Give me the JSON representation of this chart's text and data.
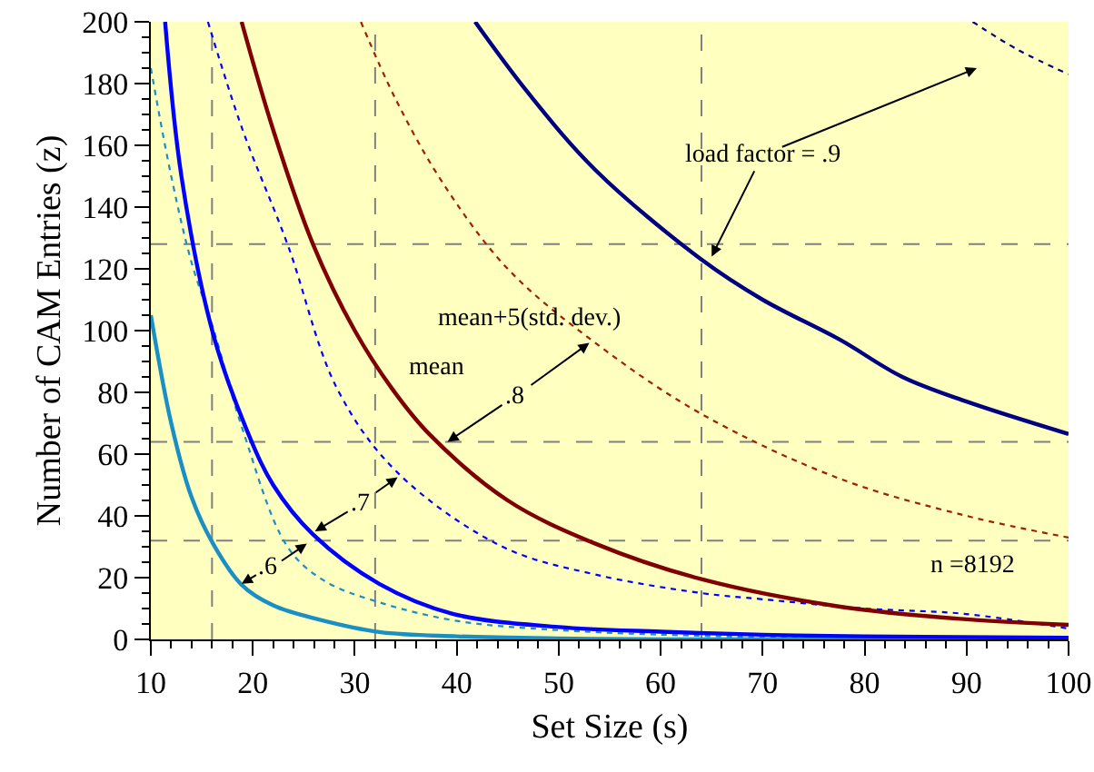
{
  "chart_data": {
    "type": "line",
    "xlabel": "Set Size (s)",
    "ylabel": "Number of CAM Entries (z)",
    "xlim": [
      10,
      100
    ],
    "ylim": [
      0,
      200
    ],
    "xticks": [
      10,
      20,
      30,
      40,
      50,
      60,
      70,
      80,
      90,
      100
    ],
    "yticks": [
      0,
      20,
      40,
      60,
      80,
      100,
      120,
      140,
      160,
      180,
      200
    ],
    "grid": false,
    "marker": "none",
    "series": [
      {
        "color": "#1a8fc4",
        "line_style": "solid",
        "x": [
          10,
          12,
          14,
          16.1,
          18.9,
          22,
          26.4,
          32.4,
          40,
          50,
          60,
          100
        ],
        "values": [
          105,
          70,
          46,
          31,
          17.7,
          11,
          6.5,
          2.4,
          1,
          0.3,
          0,
          0
        ]
      },
      {
        "color": "#1a8fc4",
        "line_style": "dotted",
        "x": [
          10,
          12,
          14,
          16.1,
          19,
          23.4,
          27,
          32.4,
          40,
          50,
          70,
          100
        ],
        "values": [
          185,
          150,
          122,
          101,
          68,
          30,
          19,
          12,
          6,
          3,
          0.7,
          0
        ]
      },
      {
        "color": "#0000ff",
        "line_style": "solid",
        "x": [
          11.4,
          13,
          16.1,
          19.2,
          22,
          25.9,
          32.4,
          39.6,
          50,
          60,
          70,
          80,
          100
        ],
        "values": [
          200,
          150,
          99,
          69.5,
          50,
          34,
          18,
          8.3,
          4,
          2.5,
          1.5,
          1,
          0.5
        ]
      },
      {
        "color": "#0000ff",
        "line_style": "dotted",
        "x": [
          15.6,
          19,
          23.4,
          28.3,
          34.2,
          44.5,
          53.6,
          64,
          70,
          80,
          89.7,
          100
        ],
        "values": [
          200,
          165,
          128,
          81,
          54,
          30,
          21,
          15,
          13,
          10,
          8.3,
          3.5
        ]
      },
      {
        "color": "#800000",
        "line_style": "solid",
        "x": [
          18.9,
          22,
          25.9,
          30,
          33.7,
          37.3,
          45,
          53.6,
          64,
          77.6,
          90,
          100
        ],
        "values": [
          200,
          165,
          128,
          100,
          81,
          66.5,
          45,
          31,
          19.5,
          10.6,
          6.5,
          4.7
        ]
      },
      {
        "color": "#a02000",
        "line_style": "dotted",
        "x": [
          30.6,
          34,
          38.6,
          45,
          53.6,
          64,
          77.6,
          90,
          100
        ],
        "values": [
          200,
          175,
          148,
          120,
          96,
          73,
          52,
          40,
          33
        ]
      },
      {
        "color": "#000080",
        "line_style": "solid",
        "x": [
          41.8,
          47,
          53.6,
          64,
          70,
          77.6,
          83.7,
          90,
          100
        ],
        "values": [
          200,
          177,
          152,
          123,
          110,
          97,
          85,
          77,
          66.5
        ]
      },
      {
        "color": "#000080",
        "line_style": "dotted",
        "x": [
          90.6,
          95,
          100
        ],
        "values": [
          200,
          191,
          183
        ]
      }
    ],
    "ref_lines": [
      {
        "axis": "x",
        "value": 16,
        "color": "#808080",
        "line_style": "dashed"
      },
      {
        "axis": "x",
        "value": 32,
        "color": "#808080",
        "line_style": "dashed"
      },
      {
        "axis": "x",
        "value": 64,
        "color": "#808080",
        "line_style": "dashed"
      },
      {
        "axis": "y",
        "value": 32,
        "color": "#808080",
        "line_style": "dashed"
      },
      {
        "axis": "y",
        "value": 64,
        "color": "#808080",
        "line_style": "dashed"
      },
      {
        "axis": "y",
        "value": 128,
        "color": "#808080",
        "line_style": "dashed"
      }
    ],
    "annotations": [
      {
        "text": "load factor = .9",
        "x": 65,
        "y": 124
      },
      {
        "text": ".8",
        "x": 39.1,
        "y": 64
      },
      {
        "text": ".7",
        "x": 26.1,
        "y": 35
      },
      {
        "text": ".6",
        "x": 18.9,
        "y": 18
      },
      "mean+5(std. dev.)",
      {
        "text": "mean",
        "x": 36,
        "y": 72
      },
      "n =8192"
    ]
  }
}
